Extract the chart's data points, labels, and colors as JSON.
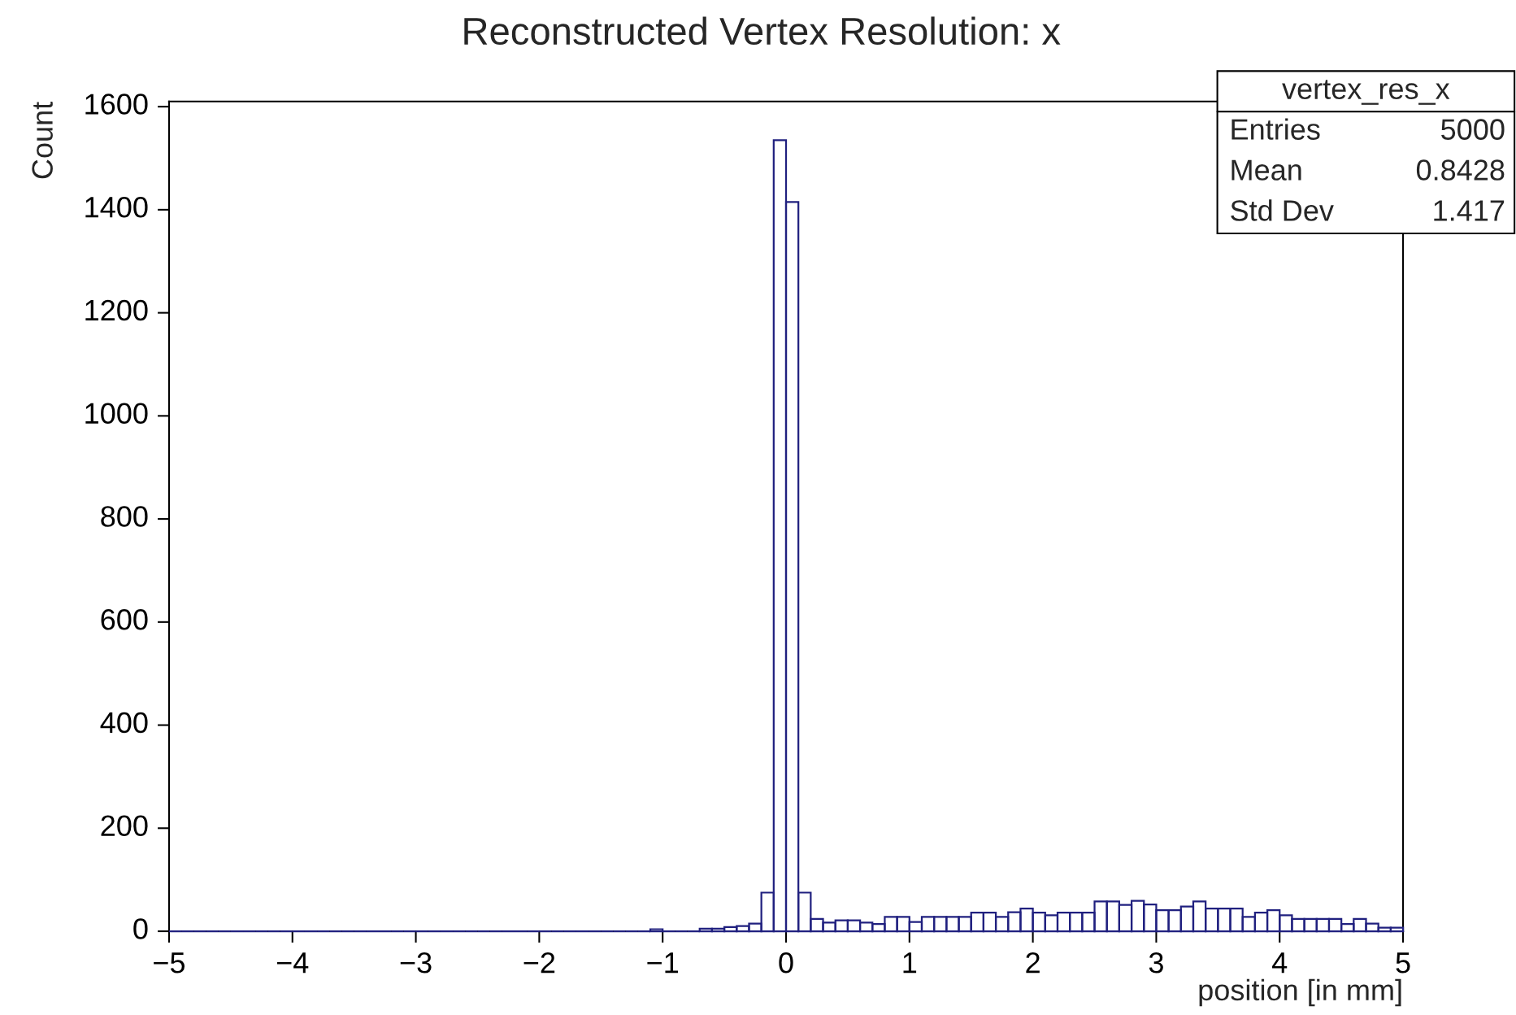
{
  "chart_data": {
    "type": "histogram",
    "title": "Reconstructed Vertex Resolution: x",
    "xlabel": "position [in mm]",
    "ylabel": "Count",
    "bins": [
      -5.0,
      -4.9,
      -4.8,
      -4.7,
      -4.6,
      -4.5,
      -4.4,
      -4.3,
      -4.2,
      -4.1,
      -4.0,
      -3.9,
      -3.8,
      -3.7,
      -3.6,
      -3.5,
      -3.4,
      -3.3,
      -3.2,
      -3.1,
      -3.0,
      -2.9,
      -2.8,
      -2.7,
      -2.6,
      -2.5,
      -2.4,
      -2.3,
      -2.2,
      -2.1,
      -2.0,
      -1.9,
      -1.8,
      -1.7,
      -1.6,
      -1.5,
      -1.4,
      -1.3,
      -1.2,
      -1.1,
      -1.0,
      -0.9,
      -0.8,
      -0.7,
      -0.6,
      -0.5,
      -0.4,
      -0.3,
      -0.2,
      -0.1,
      0.0,
      0.1,
      0.2,
      0.3,
      0.4,
      0.5,
      0.6,
      0.7,
      0.8,
      0.9,
      1.0,
      1.1,
      1.2,
      1.3,
      1.4,
      1.5,
      1.6,
      1.7,
      1.8,
      1.9,
      2.0,
      2.1,
      2.2,
      2.3,
      2.4,
      2.5,
      2.6,
      2.7,
      2.8,
      2.9,
      3.0,
      3.1,
      3.2,
      3.3,
      3.4,
      3.5,
      3.6,
      3.7,
      3.8,
      3.9,
      4.0,
      4.1,
      4.2,
      4.3,
      4.4,
      4.5,
      4.6,
      4.7,
      4.8,
      4.9,
      5.0
    ],
    "values": [
      0,
      0,
      0,
      0,
      0,
      0,
      0,
      0,
      0,
      0,
      0,
      0,
      0,
      0,
      0,
      0,
      0,
      0,
      0,
      0,
      0,
      0,
      0,
      0,
      0,
      0,
      0,
      0,
      0,
      0,
      0,
      0,
      0,
      0,
      0,
      0,
      0,
      0,
      0,
      4,
      0,
      0,
      0,
      5,
      5,
      8,
      10,
      15,
      75,
      1535,
      1415,
      75,
      24,
      17,
      21,
      21,
      17,
      14,
      28,
      28,
      18,
      28,
      28,
      28,
      28,
      36,
      36,
      28,
      37,
      44,
      36,
      31,
      36,
      36,
      36,
      58,
      58,
      51,
      59,
      52,
      41,
      41,
      48,
      58,
      44,
      44,
      44,
      28,
      36,
      41,
      31,
      24,
      24,
      24,
      24,
      14,
      24,
      15,
      7,
      7
    ],
    "color": "#20207f",
    "xlim": [
      -5,
      5
    ],
    "ylim": [
      0,
      1610
    ],
    "xticks": [
      {
        "value": -5,
        "label": "−5"
      },
      {
        "value": -4,
        "label": "−4"
      },
      {
        "value": -3,
        "label": "−3"
      },
      {
        "value": -2,
        "label": "−2"
      },
      {
        "value": -1,
        "label": "−1"
      },
      0,
      1,
      2,
      3,
      4,
      5
    ],
    "yticks": [
      0,
      200,
      400,
      600,
      800,
      1000,
      1200,
      1400,
      1600
    ],
    "annotations": [
      "vertex_res_x",
      "Entries",
      "5000",
      "Mean",
      "0.8428",
      "Std Dev",
      "1.417"
    ]
  }
}
